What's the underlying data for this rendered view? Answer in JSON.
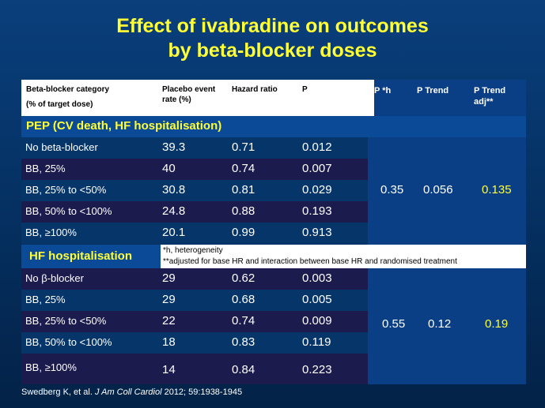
{
  "title_line1": "Effect of ivabradine on outcomes",
  "title_line2": "by beta-blocker doses",
  "header": {
    "category_line1": "Beta-blocker category",
    "category_line2": "(% of target dose)",
    "placebo_line1": "Placebo event",
    "placebo_line2": "rate (%)",
    "hazard": "Hazard ratio",
    "p": "P",
    "p_h": "P  *h",
    "p_trend": "P Trend",
    "p_trend_adj_line1": "P Trend",
    "p_trend_adj_line2": "adj**"
  },
  "section1": {
    "title": "PEP (CV death, HF hospitalisation)",
    "rows": [
      {
        "label": "No beta-blocker",
        "rate": "39.3",
        "hr": "0.71",
        "p": "0.012"
      },
      {
        "label": "BB,  25%",
        "rate": "40",
        "hr": "0.74",
        "p": "0.007"
      },
      {
        "label": "BB, 25% to <50%",
        "rate": "30.8",
        "hr": "0.81",
        "p": "0.029"
      },
      {
        "label": "BB, 50% to <100%",
        "rate": "24.8",
        "hr": "0.88",
        "p": "0.193"
      },
      {
        "label": "BB, ≥100%",
        "rate": "20.1",
        "hr": "0.99",
        "p": "0.913"
      }
    ],
    "p_h": "0.35",
    "p_trend": "0.056",
    "p_trend_adj": "0.135"
  },
  "section2": {
    "title": "HF hospitalisation",
    "rows": [
      {
        "label": "No β-blocker",
        "rate": "29",
        "hr": "0.62",
        "p": "0.003"
      },
      {
        "label": "BB,  25%",
        "rate": "29",
        "hr": "0.68",
        "p": "0.005"
      },
      {
        "label": "BB, 25% to <50%",
        "rate": "22",
        "hr": "0.74",
        "p": "0.009"
      },
      {
        "label": "BB, 50% to <100%",
        "rate": "18",
        "hr": "0.83",
        "p": "0.119"
      },
      {
        "label": "BB, ≥100%",
        "rate": "14",
        "hr": "0.84",
        "p": "0.223"
      }
    ],
    "p_h": "0.55",
    "p_trend": "0.12",
    "p_trend_adj": "0.19"
  },
  "notes": {
    "line1": "*h, heterogeneity",
    "line2": "**adjusted for base HR and interaction between base HR and randomised treatment"
  },
  "citation": {
    "authors": "Swedberg K, et al.",
    "journal": "J Am Coll Cardiol",
    "details": "2012; 59:1938-1945"
  },
  "colors": {
    "title": "#ffff33",
    "accent_value": "#ffff33",
    "band": "#0a3f86",
    "dark_row": "#1c1b4e"
  }
}
